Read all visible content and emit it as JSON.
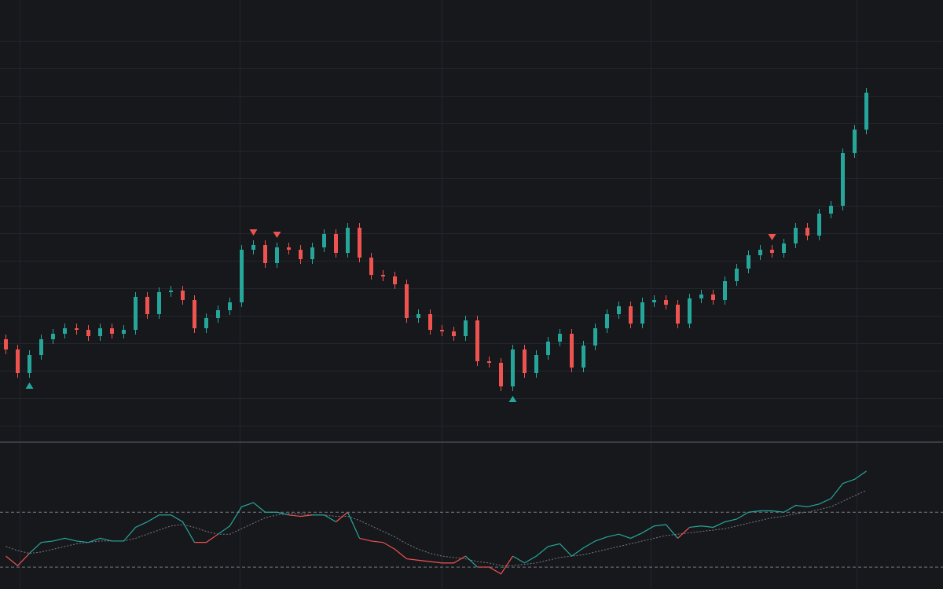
{
  "chart_data": [
    {
      "type": "candlestick",
      "open": [
        128,
        115,
        85,
        108,
        128,
        135,
        142,
        140,
        132,
        142,
        135,
        140,
        182,
        160,
        188,
        190,
        178,
        142,
        155,
        165,
        175,
        242,
        248,
        225,
        245,
        242,
        230,
        245,
        262,
        238,
        270,
        232,
        210,
        208,
        198,
        155,
        160,
        140,
        138,
        132,
        152,
        100,
        98,
        68,
        115,
        85,
        108,
        125,
        135,
        92,
        120,
        142,
        160,
        170,
        148,
        175,
        178,
        172,
        148,
        180,
        185,
        178,
        202,
        218,
        235,
        242,
        238,
        250,
        270,
        260,
        288,
        298,
        365,
        395
      ],
      "high": [
        134,
        121,
        114,
        134,
        141,
        148,
        148,
        146,
        148,
        148,
        146,
        188,
        188,
        194,
        196,
        196,
        184,
        161,
        171,
        181,
        248,
        254,
        254,
        251,
        251,
        248,
        251,
        268,
        268,
        276,
        276,
        238,
        216,
        214,
        204,
        166,
        166,
        146,
        144,
        158,
        158,
        106,
        104,
        121,
        121,
        114,
        131,
        141,
        141,
        126,
        148,
        166,
        176,
        176,
        181,
        184,
        184,
        178,
        186,
        191,
        191,
        208,
        224,
        241,
        248,
        248,
        256,
        276,
        276,
        294,
        304,
        371,
        401,
        448
      ],
      "low": [
        109,
        79,
        79,
        102,
        122,
        129,
        134,
        126,
        126,
        129,
        129,
        134,
        154,
        154,
        182,
        172,
        136,
        136,
        149,
        159,
        169,
        236,
        219,
        219,
        236,
        224,
        224,
        239,
        232,
        232,
        226,
        204,
        202,
        192,
        149,
        149,
        134,
        132,
        126,
        126,
        94,
        92,
        62,
        62,
        79,
        79,
        102,
        119,
        86,
        86,
        114,
        136,
        154,
        142,
        142,
        169,
        166,
        142,
        142,
        174,
        172,
        172,
        196,
        212,
        229,
        232,
        232,
        244,
        254,
        254,
        282,
        292,
        359,
        389
      ],
      "close": [
        115,
        85,
        108,
        128,
        135,
        142,
        140,
        132,
        142,
        135,
        140,
        182,
        160,
        188,
        190,
        178,
        142,
        155,
        165,
        175,
        242,
        248,
        225,
        245,
        242,
        230,
        245,
        262,
        238,
        270,
        232,
        210,
        208,
        198,
        155,
        160,
        140,
        138,
        132,
        152,
        100,
        98,
        68,
        115,
        85,
        108,
        125,
        135,
        92,
        120,
        142,
        160,
        170,
        148,
        175,
        178,
        172,
        148,
        180,
        185,
        178,
        202,
        218,
        235,
        242,
        238,
        250,
        270,
        260,
        288,
        298,
        365,
        395,
        442
      ],
      "up_color": "#26a69a",
      "down_color": "#ef5350",
      "buy_signals": [
        2,
        43
      ],
      "sell_signals": [
        21,
        23,
        65
      ],
      "ylim": [
        0,
        560
      ],
      "gridlines_y": [
        18,
        53,
        88,
        123,
        158,
        193,
        228,
        263,
        298,
        333,
        368,
        403,
        438,
        473,
        508
      ]
    },
    {
      "type": "oscillator",
      "values": [
        38,
        31,
        40,
        48,
        49,
        51,
        49,
        48,
        51,
        49,
        49,
        59,
        63,
        68,
        68,
        63,
        48,
        48,
        54,
        60,
        74,
        77,
        70,
        70,
        68,
        67,
        68,
        68,
        63,
        70,
        51,
        49,
        48,
        43,
        36,
        35,
        34,
        33,
        33,
        38,
        30,
        30,
        25,
        38,
        33,
        38,
        45,
        47,
        38,
        44,
        49,
        52,
        54,
        51,
        55,
        60,
        61,
        51,
        59,
        60,
        59,
        63,
        65,
        70,
        71,
        71,
        70,
        75,
        74,
        76,
        80,
        91,
        94,
        100
      ],
      "signal": [
        45,
        42,
        40,
        41,
        43,
        45,
        47,
        48,
        49,
        49,
        49,
        51,
        54,
        57,
        60,
        61,
        59,
        56,
        54,
        54,
        58,
        62,
        66,
        68,
        69,
        69,
        68,
        68,
        67,
        67,
        64,
        60,
        56,
        52,
        47,
        43,
        40,
        38,
        37,
        36,
        34,
        33,
        31,
        31,
        32,
        33,
        35,
        37,
        38,
        39,
        41,
        43,
        45,
        47,
        49,
        51,
        53,
        54,
        55,
        56,
        57,
        58,
        60,
        62,
        64,
        66,
        67,
        69,
        70,
        72,
        74,
        78,
        82,
        86
      ],
      "up_color": "#26a69a",
      "down_color": "#ef5350",
      "signal_color": "#787b86",
      "levels": [
        30,
        70
      ],
      "ylim": [
        14,
        120
      ]
    }
  ]
}
